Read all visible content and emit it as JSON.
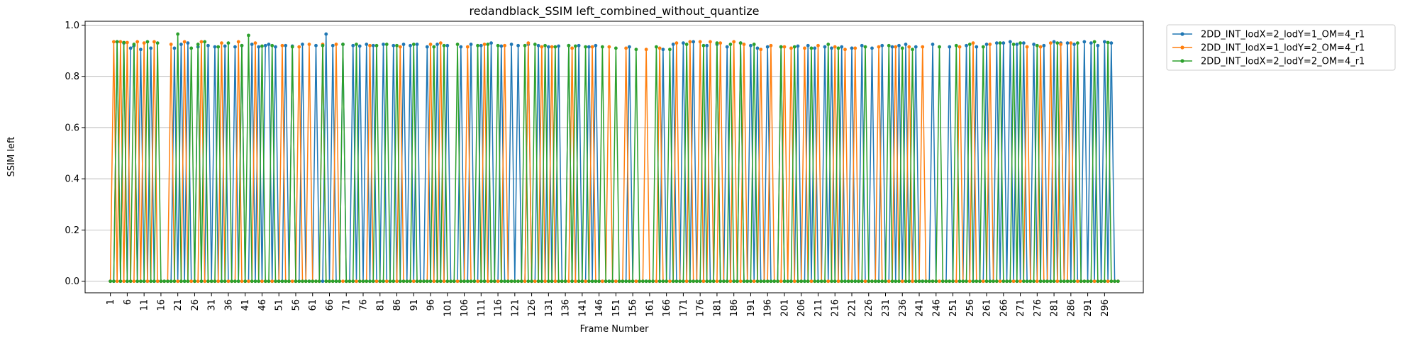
{
  "chart_data": {
    "type": "line",
    "title": "redandblack_SSIM left_combined_without_quantize",
    "xlabel": "Frame Number",
    "ylabel": "SSIM left",
    "xlim": [
      -6.5,
      307.5
    ],
    "ylim": [
      -0.045,
      1.015
    ],
    "x_start": 1,
    "x_end": 300,
    "xticks": [
      1,
      6,
      11,
      16,
      21,
      26,
      31,
      36,
      41,
      46,
      51,
      56,
      61,
      66,
      71,
      76,
      81,
      86,
      91,
      96,
      101,
      106,
      111,
      116,
      121,
      126,
      131,
      136,
      141,
      146,
      151,
      156,
      161,
      166,
      171,
      176,
      181,
      186,
      191,
      196,
      201,
      206,
      211,
      216,
      221,
      226,
      231,
      236,
      241,
      246,
      251,
      256,
      261,
      266,
      271,
      276,
      281,
      286,
      291,
      296
    ],
    "yticks": [
      0.0,
      0.2,
      0.4,
      0.6,
      0.8,
      1.0
    ],
    "ytick_labels": [
      "0.0",
      "0.2",
      "0.4",
      "0.6",
      "0.8",
      "1.0"
    ],
    "grid": "y",
    "legend_position": "outside-top-right",
    "series": [
      {
        "name": "2DD_INT_lodX=2_lodY=1_OM=4_r1",
        "color": "#1f77b4",
        "high_frames": [
          3,
          5,
          7,
          8,
          10,
          13,
          20,
          22,
          24,
          27,
          30,
          32,
          35,
          38,
          40,
          43,
          45,
          47,
          48,
          50,
          53,
          55,
          58,
          62,
          65,
          67,
          70,
          73,
          75,
          77,
          79,
          82,
          85,
          88,
          90,
          92,
          95,
          98,
          101,
          105,
          108,
          111,
          114,
          117,
          120,
          122,
          125,
          128,
          131,
          134,
          137,
          140,
          143,
          145,
          155,
          165,
          168,
          171,
          174,
          178,
          181,
          184,
          188,
          191,
          193,
          196,
          200,
          205,
          208,
          210,
          213,
          215,
          218,
          221,
          224,
          227,
          230,
          233,
          235,
          237,
          240,
          245,
          250,
          255,
          258,
          261,
          264,
          266,
          268,
          270,
          272,
          275,
          278,
          281,
          283,
          285,
          287,
          290,
          292,
          294,
          296,
          298
        ],
        "high_values": [
          0.935,
          0.93,
          0.91,
          0.92,
          0.905,
          0.91,
          0.91,
          0.925,
          0.93,
          0.915,
          0.92,
          0.915,
          0.918,
          0.915,
          0.92,
          0.925,
          0.915,
          0.92,
          0.925,
          0.915,
          0.92,
          0.918,
          0.925,
          0.92,
          0.965,
          0.92,
          0.925,
          0.92,
          0.918,
          0.925,
          0.92,
          0.925,
          0.92,
          0.925,
          0.92,
          0.925,
          0.915,
          0.925,
          0.92,
          0.915,
          0.925,
          0.92,
          0.93,
          0.918,
          0.925,
          0.92,
          0.925,
          0.92,
          0.915,
          0.918,
          0.92,
          0.92,
          0.915,
          0.92,
          0.915,
          0.905,
          0.925,
          0.93,
          0.935,
          0.92,
          0.925,
          0.915,
          0.93,
          0.92,
          0.91,
          0.915,
          0.915,
          0.918,
          0.92,
          0.91,
          0.915,
          0.91,
          0.915,
          0.91,
          0.92,
          0.91,
          0.92,
          0.915,
          0.92,
          0.925,
          0.915,
          0.925,
          0.915,
          0.92,
          0.915,
          0.925,
          0.93,
          0.93,
          0.935,
          0.925,
          0.93,
          0.925,
          0.92,
          0.935,
          0.93,
          0.93,
          0.925,
          0.935,
          0.93,
          0.92,
          0.935,
          0.93
        ],
        "low_value": 0.0
      },
      {
        "name": "2DD_INT_lodX=1_lodY=2_OM=4_r1",
        "color": "#ff7f0e",
        "high_frames": [
          2,
          4,
          6,
          9,
          11,
          14,
          19,
          23,
          28,
          34,
          39,
          44,
          52,
          57,
          60,
          64,
          68,
          78,
          87,
          96,
          99,
          107,
          112,
          118,
          125,
          129,
          132,
          138,
          144,
          149,
          154,
          160,
          164,
          169,
          173,
          176,
          179,
          182,
          186,
          189,
          194,
          197,
          201,
          203,
          207,
          211,
          216,
          219,
          222,
          229,
          234,
          238,
          242,
          253,
          257,
          262,
          273,
          277,
          280,
          283,
          286
        ],
        "high_values": [
          0.935,
          0.935,
          0.932,
          0.935,
          0.93,
          0.935,
          0.925,
          0.935,
          0.935,
          0.93,
          0.935,
          0.93,
          0.92,
          0.915,
          0.925,
          0.925,
          0.925,
          0.92,
          0.915,
          0.925,
          0.93,
          0.915,
          0.925,
          0.92,
          0.93,
          0.915,
          0.915,
          0.91,
          0.915,
          0.915,
          0.91,
          0.905,
          0.91,
          0.93,
          0.935,
          0.935,
          0.935,
          0.93,
          0.935,
          0.925,
          0.905,
          0.92,
          0.915,
          0.91,
          0.91,
          0.92,
          0.915,
          0.905,
          0.91,
          0.915,
          0.915,
          0.915,
          0.915,
          0.915,
          0.93,
          0.925,
          0.915,
          0.915,
          0.93,
          0.925,
          0.93
        ],
        "low_value": 0.0
      },
      {
        "name": "2DD_INT_lodX=2_lodY=2_OM=4_r1",
        "color": "#2ca02c",
        "high_frames": [
          3,
          5,
          8,
          12,
          15,
          21,
          25,
          27,
          29,
          33,
          36,
          40,
          42,
          46,
          49,
          55,
          64,
          70,
          74,
          80,
          83,
          86,
          91,
          97,
          100,
          104,
          110,
          113,
          116,
          124,
          127,
          130,
          133,
          137,
          139,
          142,
          147,
          151,
          157,
          163,
          167,
          172,
          177,
          181,
          185,
          188,
          192,
          200,
          204,
          209,
          214,
          217,
          225,
          232,
          236,
          239,
          247,
          252,
          256,
          260,
          265,
          269,
          271,
          276,
          282,
          288,
          293,
          297
        ],
        "high_values": [
          0.935,
          0.932,
          0.925,
          0.935,
          0.93,
          0.965,
          0.91,
          0.925,
          0.935,
          0.915,
          0.93,
          0.92,
          0.96,
          0.918,
          0.92,
          0.915,
          0.92,
          0.925,
          0.925,
          0.92,
          0.925,
          0.92,
          0.925,
          0.915,
          0.92,
          0.925,
          0.92,
          0.925,
          0.92,
          0.92,
          0.925,
          0.92,
          0.915,
          0.92,
          0.918,
          0.915,
          0.915,
          0.91,
          0.905,
          0.915,
          0.905,
          0.925,
          0.92,
          0.93,
          0.925,
          0.93,
          0.925,
          0.915,
          0.915,
          0.91,
          0.925,
          0.91,
          0.915,
          0.92,
          0.91,
          0.905,
          0.915,
          0.92,
          0.925,
          0.915,
          0.93,
          0.925,
          0.93,
          0.92,
          0.93,
          0.93,
          0.935,
          0.932
        ],
        "low_value": 0.0
      }
    ]
  }
}
